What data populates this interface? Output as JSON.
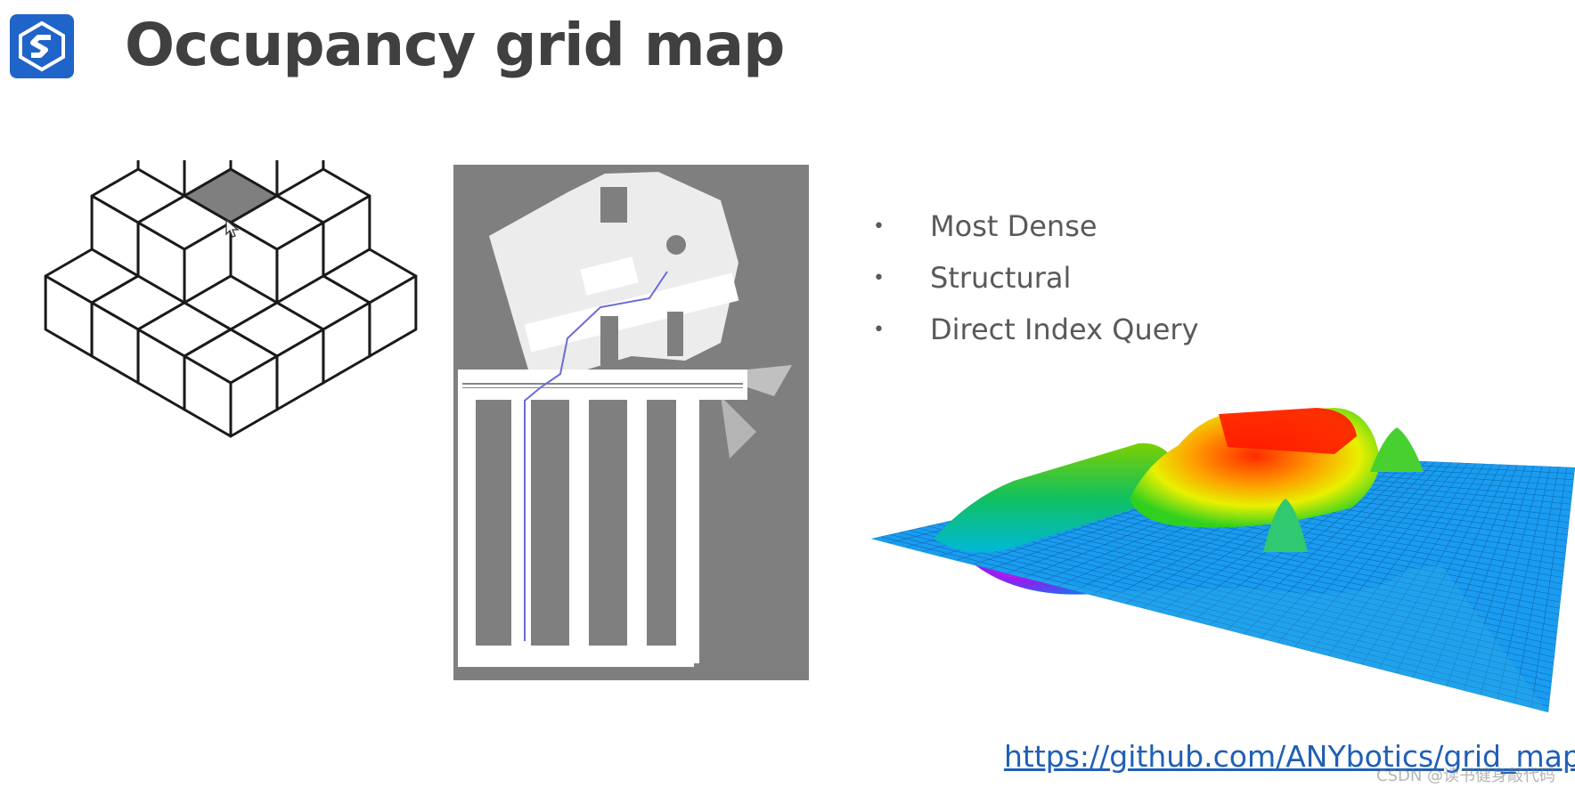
{
  "slide": {
    "title": "Occupancy grid map",
    "bullets": [
      {
        "text": "Most Dense"
      },
      {
        "text": "Structural"
      },
      {
        "text": "Direct Index Query"
      }
    ],
    "link_text": "https://github.com/ANYbotics/grid_map",
    "watermark": "CSDN @读书健身敲代码"
  },
  "icons": {
    "logo": "app-logo-icon",
    "cursor": "mouse-cursor-icon",
    "bullet": "bullet-dot-icon"
  },
  "colors": {
    "logo_bg": "#1f64c8",
    "title": "#404040",
    "bullet_text": "#595959",
    "link": "#1f5fb8",
    "map_unknown": "#7f7f7f",
    "map_free": "#ffffff",
    "path": "#6b6bd6",
    "highlight_cube": "#7f7f7f"
  }
}
